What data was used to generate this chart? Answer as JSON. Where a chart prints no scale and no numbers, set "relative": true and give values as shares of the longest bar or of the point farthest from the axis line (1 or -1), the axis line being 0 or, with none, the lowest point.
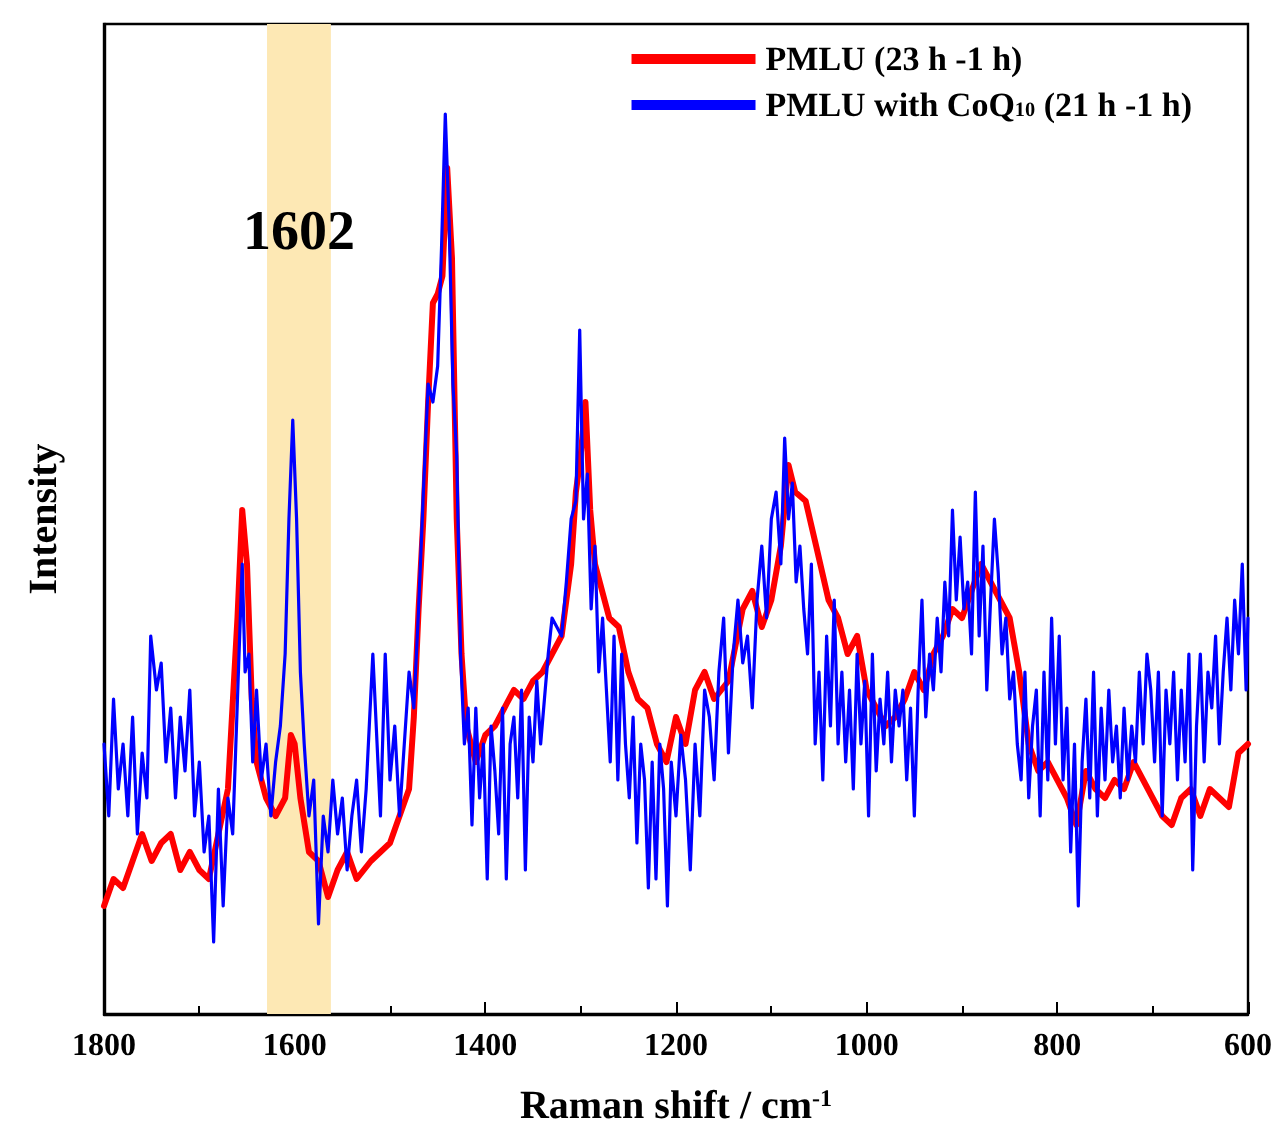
{
  "chart_data": {
    "type": "line",
    "relative": true,
    "xlabel": "Raman shift / cm$^{-1}$",
    "ylabel": "Intensity",
    "xlim": [
      1800,
      600
    ],
    "xticks": [
      1800,
      1600,
      1400,
      1200,
      1000,
      800,
      600
    ],
    "legend": "top right",
    "marker": "none",
    "line_style": "solid",
    "grid": false,
    "bands": [
      {
        "axis": "x",
        "from": 1629,
        "to": 1562,
        "label": "1602",
        "color": "#fde8b4"
      }
    ],
    "series": [
      {
        "name": "PMLU (23 h -1 h)",
        "color": "#ff0000",
        "x": [
          1800,
          1790,
          1780,
          1770,
          1760,
          1750,
          1740,
          1730,
          1720,
          1710,
          1700,
          1690,
          1680,
          1670,
          1660,
          1655,
          1650,
          1645,
          1640,
          1630,
          1620,
          1610,
          1604,
          1600,
          1594,
          1585,
          1575,
          1565,
          1555,
          1545,
          1535,
          1520,
          1510,
          1500,
          1490,
          1480,
          1475,
          1470,
          1465,
          1460,
          1455,
          1450,
          1445,
          1440,
          1435,
          1430,
          1425,
          1420,
          1410,
          1400,
          1390,
          1380,
          1370,
          1360,
          1350,
          1340,
          1330,
          1320,
          1310,
          1305,
          1300,
          1295,
          1290,
          1285,
          1280,
          1270,
          1260,
          1250,
          1240,
          1230,
          1220,
          1210,
          1200,
          1190,
          1180,
          1170,
          1160,
          1145,
          1130,
          1120,
          1110,
          1100,
          1090,
          1082,
          1075,
          1064,
          1053,
          1040,
          1030,
          1020,
          1010,
          1000,
          990,
          980,
          970,
          960,
          950,
          940,
          930,
          920,
          910,
          900,
          890,
          880,
          870,
          860,
          850,
          840,
          830,
          820,
          810,
          800,
          790,
          780,
          770,
          760,
          750,
          740,
          730,
          720,
          710,
          700,
          690,
          680,
          670,
          660,
          650,
          640,
          630,
          620,
          610,
          600
        ],
        "values": [
          0.12,
          0.15,
          0.14,
          0.17,
          0.2,
          0.17,
          0.19,
          0.2,
          0.16,
          0.18,
          0.16,
          0.15,
          0.2,
          0.25,
          0.44,
          0.56,
          0.5,
          0.35,
          0.28,
          0.24,
          0.22,
          0.24,
          0.31,
          0.3,
          0.24,
          0.18,
          0.17,
          0.13,
          0.16,
          0.18,
          0.15,
          0.17,
          0.18,
          0.19,
          0.22,
          0.25,
          0.33,
          0.45,
          0.55,
          0.68,
          0.79,
          0.8,
          0.82,
          0.94,
          0.84,
          0.55,
          0.4,
          0.32,
          0.28,
          0.31,
          0.32,
          0.34,
          0.36,
          0.35,
          0.37,
          0.38,
          0.4,
          0.42,
          0.5,
          0.58,
          0.62,
          0.68,
          0.56,
          0.5,
          0.48,
          0.44,
          0.43,
          0.38,
          0.35,
          0.34,
          0.3,
          0.28,
          0.33,
          0.3,
          0.36,
          0.38,
          0.35,
          0.37,
          0.45,
          0.47,
          0.43,
          0.46,
          0.52,
          0.61,
          0.58,
          0.57,
          0.52,
          0.46,
          0.44,
          0.4,
          0.42,
          0.36,
          0.34,
          0.32,
          0.33,
          0.35,
          0.38,
          0.36,
          0.4,
          0.42,
          0.45,
          0.44,
          0.47,
          0.5,
          0.48,
          0.46,
          0.44,
          0.38,
          0.3,
          0.27,
          0.28,
          0.26,
          0.24,
          0.21,
          0.27,
          0.25,
          0.24,
          0.26,
          0.25,
          0.28,
          0.26,
          0.24,
          0.22,
          0.21,
          0.24,
          0.25,
          0.22,
          0.25,
          0.24,
          0.23,
          0.29,
          0.3
        ]
      },
      {
        "name": "PMLU with CoQ$_{10}$ (21 h -1 h)",
        "color": "#0000ff",
        "x": [
          1800,
          1795,
          1790,
          1785,
          1780,
          1775,
          1770,
          1765,
          1760,
          1755,
          1751,
          1745,
          1740,
          1735,
          1730,
          1725,
          1720,
          1715,
          1710,
          1705,
          1700,
          1695,
          1690,
          1685,
          1680,
          1675,
          1670,
          1665,
          1660,
          1655,
          1652,
          1648,
          1644,
          1640,
          1635,
          1630,
          1625,
          1620,
          1615,
          1610,
          1606,
          1602,
          1598,
          1594,
          1590,
          1585,
          1580,
          1575,
          1570,
          1565,
          1560,
          1555,
          1550,
          1545,
          1540,
          1535,
          1530,
          1525,
          1518,
          1510,
          1505,
          1500,
          1495,
          1490,
          1485,
          1480,
          1475,
          1470,
          1465,
          1460,
          1455,
          1450,
          1446,
          1442,
          1438,
          1434,
          1430,
          1426,
          1422,
          1418,
          1414,
          1410,
          1406,
          1402,
          1398,
          1394,
          1390,
          1386,
          1382,
          1378,
          1374,
          1370,
          1366,
          1362,
          1358,
          1354,
          1350,
          1346,
          1342,
          1338,
          1334,
          1330,
          1320,
          1315,
          1310,
          1305,
          1301,
          1297,
          1293,
          1289,
          1285,
          1281,
          1277,
          1273,
          1269,
          1265,
          1261,
          1257,
          1253,
          1249,
          1245,
          1241,
          1237,
          1233,
          1229,
          1225,
          1221,
          1217,
          1213,
          1209,
          1205,
          1200,
          1195,
          1190,
          1185,
          1180,
          1175,
          1170,
          1165,
          1160,
          1155,
          1150,
          1145,
          1140,
          1135,
          1130,
          1125,
          1120,
          1115,
          1110,
          1105,
          1100,
          1095,
          1090,
          1086,
          1082,
          1078,
          1074,
          1070,
          1066,
          1062,
          1058,
          1054,
          1050,
          1046,
          1042,
          1038,
          1034,
          1030,
          1026,
          1022,
          1018,
          1014,
          1010,
          1006,
          1002,
          998,
          994,
          990,
          986,
          982,
          978,
          974,
          970,
          966,
          962,
          958,
          954,
          950,
          946,
          942,
          938,
          934,
          930,
          926,
          922,
          918,
          914,
          910,
          906,
          902,
          898,
          894,
          890,
          886,
          882,
          878,
          874,
          870,
          866,
          862,
          858,
          854,
          850,
          846,
          842,
          838,
          834,
          830,
          826,
          822,
          818,
          814,
          810,
          806,
          802,
          798,
          794,
          790,
          786,
          782,
          778,
          774,
          770,
          766,
          762,
          758,
          754,
          750,
          746,
          742,
          738,
          734,
          730,
          726,
          722,
          718,
          714,
          710,
          706,
          702,
          698,
          694,
          690,
          686,
          682,
          678,
          674,
          670,
          666,
          662,
          658,
          654,
          650,
          646,
          642,
          638,
          634,
          630,
          626,
          622,
          618,
          614,
          610,
          606,
          602,
          600
        ],
        "values": [
          0.3,
          0.22,
          0.35,
          0.25,
          0.3,
          0.22,
          0.33,
          0.2,
          0.29,
          0.24,
          0.42,
          0.36,
          0.39,
          0.28,
          0.34,
          0.24,
          0.33,
          0.27,
          0.36,
          0.22,
          0.28,
          0.18,
          0.22,
          0.08,
          0.25,
          0.12,
          0.24,
          0.2,
          0.35,
          0.5,
          0.38,
          0.4,
          0.28,
          0.36,
          0.26,
          0.3,
          0.22,
          0.28,
          0.32,
          0.4,
          0.55,
          0.66,
          0.55,
          0.38,
          0.3,
          0.22,
          0.26,
          0.1,
          0.22,
          0.18,
          0.26,
          0.2,
          0.24,
          0.16,
          0.22,
          0.26,
          0.18,
          0.25,
          0.4,
          0.22,
          0.4,
          0.26,
          0.32,
          0.22,
          0.3,
          0.38,
          0.34,
          0.45,
          0.58,
          0.7,
          0.68,
          0.72,
          0.85,
          1,
          0.88,
          0.7,
          0.62,
          0.4,
          0.3,
          0.34,
          0.21,
          0.34,
          0.24,
          0.3,
          0.15,
          0.32,
          0.27,
          0.2,
          0.34,
          0.15,
          0.3,
          0.33,
          0.24,
          0.36,
          0.16,
          0.33,
          0.28,
          0.37,
          0.3,
          0.35,
          0.4,
          0.44,
          0.42,
          0.48,
          0.55,
          0.57,
          0.76,
          0.55,
          0.6,
          0.45,
          0.52,
          0.38,
          0.44,
          0.36,
          0.28,
          0.42,
          0.26,
          0.4,
          0.3,
          0.24,
          0.33,
          0.19,
          0.3,
          0.26,
          0.14,
          0.28,
          0.15,
          0.3,
          0.25,
          0.12,
          0.28,
          0.22,
          0.31,
          0.26,
          0.16,
          0.3,
          0.22,
          0.36,
          0.33,
          0.26,
          0.38,
          0.44,
          0.29,
          0.4,
          0.46,
          0.39,
          0.42,
          0.34,
          0.46,
          0.52,
          0.44,
          0.55,
          0.58,
          0.5,
          0.64,
          0.55,
          0.59,
          0.48,
          0.52,
          0.45,
          0.4,
          0.5,
          0.3,
          0.38,
          0.26,
          0.42,
          0.32,
          0.46,
          0.3,
          0.38,
          0.28,
          0.36,
          0.25,
          0.4,
          0.3,
          0.37,
          0.22,
          0.4,
          0.27,
          0.35,
          0.3,
          0.38,
          0.28,
          0.36,
          0.32,
          0.36,
          0.26,
          0.34,
          0.22,
          0.36,
          0.46,
          0.33,
          0.4,
          0.36,
          0.44,
          0.38,
          0.48,
          0.42,
          0.56,
          0.46,
          0.53,
          0.45,
          0.48,
          0.4,
          0.58,
          0.42,
          0.52,
          0.36,
          0.46,
          0.55,
          0.49,
          0.4,
          0.44,
          0.35,
          0.38,
          0.3,
          0.26,
          0.38,
          0.24,
          0.32,
          0.36,
          0.22,
          0.38,
          0.26,
          0.44,
          0.3,
          0.42,
          0.26,
          0.34,
          0.18,
          0.3,
          0.12,
          0.28,
          0.35,
          0.24,
          0.38,
          0.22,
          0.34,
          0.26,
          0.36,
          0.28,
          0.32,
          0.24,
          0.34,
          0.26,
          0.32,
          0.28,
          0.38,
          0.3,
          0.4,
          0.36,
          0.28,
          0.38,
          0.22,
          0.36,
          0.3,
          0.38,
          0.26,
          0.36,
          0.28,
          0.4,
          0.16,
          0.32,
          0.4,
          0.28,
          0.38,
          0.34,
          0.42,
          0.3,
          0.38,
          0.44,
          0.36,
          0.46,
          0.4,
          0.5,
          0.36,
          0.44
        ]
      }
    ]
  }
}
